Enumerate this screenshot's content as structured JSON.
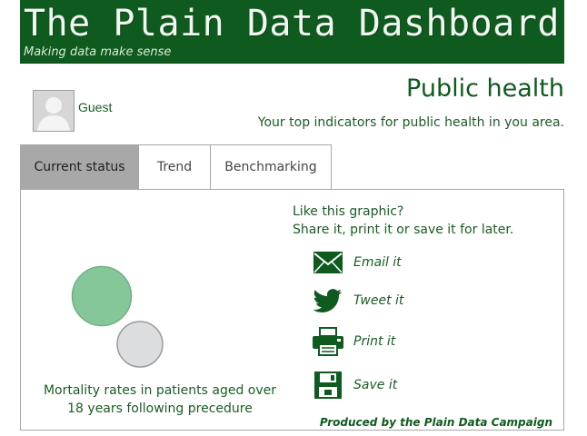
{
  "header": {
    "title": "The Plain Data Dashboard",
    "tagline": "Making data make sense",
    "background_color": "#0f5a1f"
  },
  "user": {
    "name": "Guest",
    "avatar_icon": "user-silhouette-icon"
  },
  "page": {
    "title": "Public health",
    "subtitle": "Your top indicators for public health in you area."
  },
  "tabs": [
    {
      "label": "Current status",
      "active": true
    },
    {
      "label": "Trend",
      "active": false
    },
    {
      "label": "Benchmarking",
      "active": false
    }
  ],
  "chart": {
    "caption": "Mortality rates in patients aged over 18 years following precedure",
    "colors": {
      "primary": "#86c79a",
      "comparison": "#dcdddf"
    }
  },
  "share": {
    "intro_line1": "Like this graphic?",
    "intro_line2": "Share it, print it or save it for later.",
    "items": [
      {
        "label": "Email it",
        "icon": "envelope-icon"
      },
      {
        "label": "Tweet it",
        "icon": "twitter-bird-icon"
      },
      {
        "label": "Print it",
        "icon": "printer-icon"
      },
      {
        "label": "Save it",
        "icon": "floppy-disk-icon"
      }
    ],
    "icon_color": "#0f5a1f"
  },
  "footer": {
    "credit": "Produced by the Plain Data Campaign"
  }
}
